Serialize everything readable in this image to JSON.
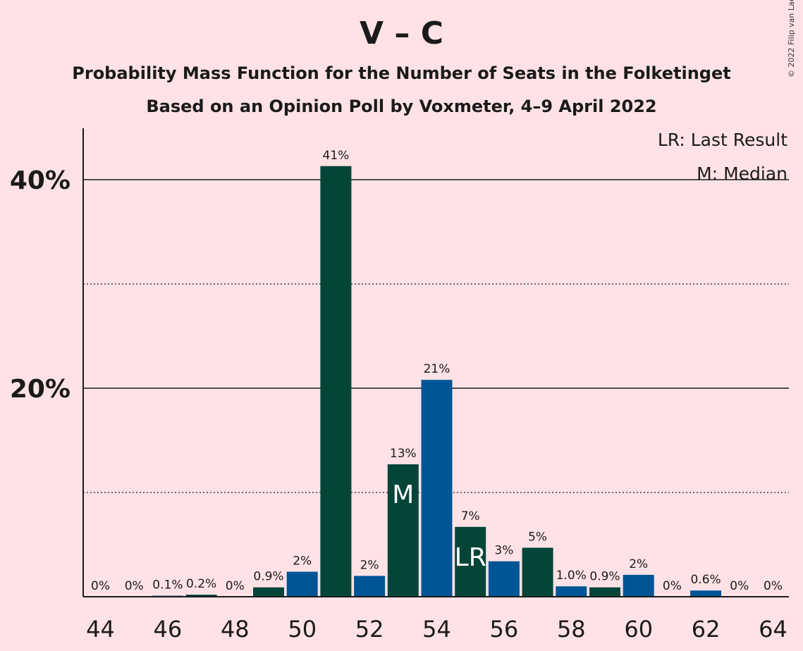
{
  "title": "V – C",
  "subtitle1": "Probability Mass Function for the Number of Seats in the Folketinget",
  "subtitle2": "Based on an Opinion Poll by Voxmeter, 4–9 April 2022",
  "credit": "© 2022 Filip van Laenen",
  "legend": {
    "lr": "LR: Last Result",
    "m": "M: Median"
  },
  "colors": {
    "background": "#FFE2E6",
    "dark_green": "#04453A",
    "blue": "#005596"
  },
  "chart_data": {
    "type": "bar",
    "title": "V – C",
    "subtitle": "Probability Mass Function for the Number of Seats in the Folketinget",
    "ylim": [
      0,
      45
    ],
    "y_ticks": [
      {
        "value": 20,
        "label": "20%",
        "style": "solid"
      },
      {
        "value": 40,
        "label": "40%",
        "style": "solid"
      }
    ],
    "y_dotted_gridlines": [
      10,
      30
    ],
    "x_tick_labels": [
      "44",
      "46",
      "48",
      "50",
      "52",
      "54",
      "56",
      "58",
      "60",
      "62",
      "64"
    ],
    "bars": [
      {
        "x": 44,
        "value": 0,
        "label": "0%",
        "color": "blue"
      },
      {
        "x": 45,
        "value": 0,
        "label": "0%",
        "color": "dark_green"
      },
      {
        "x": 46,
        "value": 0.1,
        "label": "0.1%",
        "color": "blue"
      },
      {
        "x": 47,
        "value": 0.2,
        "label": "0.2%",
        "color": "dark_green"
      },
      {
        "x": 48,
        "value": 0,
        "label": "0%",
        "color": "blue"
      },
      {
        "x": 49,
        "value": 0.9,
        "label": "0.9%",
        "color": "dark_green"
      },
      {
        "x": 50,
        "value": 2.4,
        "label": "2%",
        "color": "blue"
      },
      {
        "x": 51,
        "value": 41.3,
        "label": "41%",
        "color": "dark_green"
      },
      {
        "x": 52,
        "value": 2.0,
        "label": "2%",
        "color": "blue"
      },
      {
        "x": 53,
        "value": 12.7,
        "label": "13%",
        "color": "dark_green",
        "marker": "M"
      },
      {
        "x": 54,
        "value": 20.8,
        "label": "21%",
        "color": "blue"
      },
      {
        "x": 55,
        "value": 6.7,
        "label": "7%",
        "color": "dark_green",
        "marker": "LR"
      },
      {
        "x": 56,
        "value": 3.4,
        "label": "3%",
        "color": "blue"
      },
      {
        "x": 57,
        "value": 4.7,
        "label": "5%",
        "color": "dark_green"
      },
      {
        "x": 58,
        "value": 1.0,
        "label": "1.0%",
        "color": "blue"
      },
      {
        "x": 59,
        "value": 0.9,
        "label": "0.9%",
        "color": "dark_green"
      },
      {
        "x": 60,
        "value": 2.1,
        "label": "2%",
        "color": "blue"
      },
      {
        "x": 61,
        "value": 0,
        "label": "0%",
        "color": "dark_green"
      },
      {
        "x": 62,
        "value": 0.6,
        "label": "0.6%",
        "color": "blue"
      },
      {
        "x": 63,
        "value": 0,
        "label": "0%",
        "color": "dark_green"
      },
      {
        "x": 64,
        "value": 0,
        "label": "0%",
        "color": "blue"
      }
    ]
  }
}
